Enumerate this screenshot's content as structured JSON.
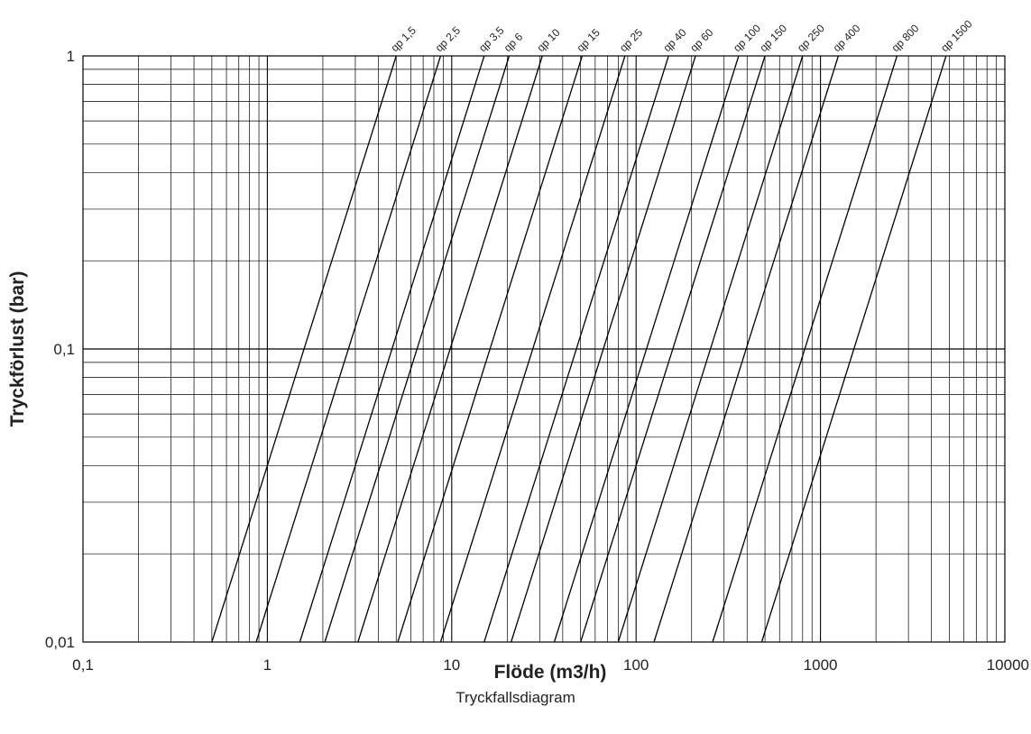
{
  "chart_data": {
    "type": "line",
    "x_scale": "log",
    "y_scale": "log",
    "xlim": [
      0.1,
      10000
    ],
    "ylim": [
      0.01,
      1
    ],
    "xlabel": "Flöde (m3/h)",
    "ylabel": "Tryckförlust (bar)",
    "x_ticks": [
      "0,1",
      "1",
      "10",
      "100",
      "1000",
      "10000"
    ],
    "y_ticks": [
      "0,01",
      "0,1",
      "1"
    ],
    "grid": true,
    "series": [
      {
        "name": "qp 1,5",
        "points": [
          [
            0.5,
            0.01
          ],
          [
            5,
            1
          ]
        ]
      },
      {
        "name": "qp 2,5",
        "points": [
          [
            0.87,
            0.01
          ],
          [
            8.7,
            1
          ]
        ]
      },
      {
        "name": "qp 3,5",
        "points": [
          [
            1.5,
            0.01
          ],
          [
            15,
            1
          ]
        ]
      },
      {
        "name": "qp 6",
        "points": [
          [
            2.05,
            0.01
          ],
          [
            20.5,
            1
          ]
        ]
      },
      {
        "name": "qp 10",
        "points": [
          [
            3.1,
            0.01
          ],
          [
            31,
            1
          ]
        ]
      },
      {
        "name": "qp 15",
        "points": [
          [
            5.1,
            0.01
          ],
          [
            51,
            1
          ]
        ]
      },
      {
        "name": "qp 25",
        "points": [
          [
            8.7,
            0.01
          ],
          [
            87,
            1
          ]
        ]
      },
      {
        "name": "qp 40",
        "points": [
          [
            15,
            0.01
          ],
          [
            150,
            1
          ]
        ]
      },
      {
        "name": "qp 60",
        "points": [
          [
            21,
            0.01
          ],
          [
            210,
            1
          ]
        ]
      },
      {
        "name": "qp 100",
        "points": [
          [
            36,
            0.01
          ],
          [
            360,
            1
          ]
        ]
      },
      {
        "name": "qp 150",
        "points": [
          [
            50,
            0.01
          ],
          [
            500,
            1
          ]
        ]
      },
      {
        "name": "qp 250",
        "points": [
          [
            80,
            0.01
          ],
          [
            800,
            1
          ]
        ]
      },
      {
        "name": "qp 400",
        "points": [
          [
            125,
            0.01
          ],
          [
            1250,
            1
          ]
        ]
      },
      {
        "name": "qp 800",
        "points": [
          [
            260,
            0.01
          ],
          [
            2600,
            1
          ]
        ]
      },
      {
        "name": "qp 1500",
        "points": [
          [
            480,
            0.01
          ],
          [
            4800,
            1
          ]
        ]
      }
    ]
  },
  "caption": "Tryckfallsdiagram",
  "colors": {
    "line": "#000000",
    "grid": "#000000",
    "text": "#222222"
  }
}
